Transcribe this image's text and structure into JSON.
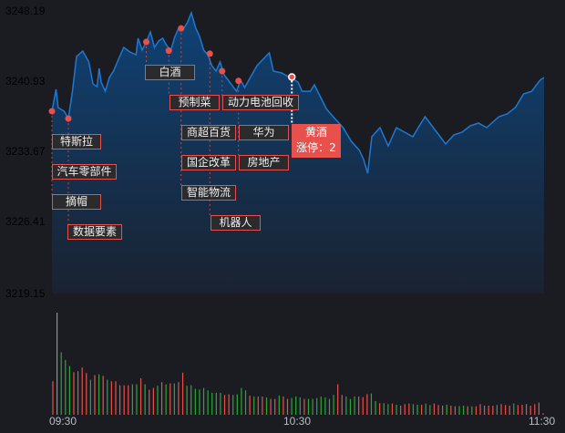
{
  "chart_data": {
    "type": "line",
    "y_axis_labels": [
      {
        "value": "3248.19",
        "color": "#e8504c"
      },
      {
        "value": "3240.93",
        "color": "#e8504c"
      },
      {
        "value": "3233.67",
        "color": "#b8bcc4"
      },
      {
        "value": "3226.41",
        "color": "#2fa53a"
      },
      {
        "value": "3219.15",
        "color": "#2fa53a"
      }
    ],
    "ylim": [
      3219.15,
      3248.19
    ],
    "x_axis_labels": [
      "09:30",
      "10:30",
      "11:30"
    ],
    "xlim_minutes_from_open": [
      0,
      120
    ],
    "colors": {
      "line": "#1e78d2",
      "area_top": "#0f3f6e",
      "area_bottom": "#1a2230",
      "up": "#e8504c",
      "down": "#2fa53a",
      "marker": "#e8504c"
    },
    "price_series": [
      [
        0,
        3237.88
      ],
      [
        1,
        3240.13
      ],
      [
        1.5,
        3238.26
      ],
      [
        3,
        3237.88
      ],
      [
        4,
        3237.13
      ],
      [
        5,
        3239.94
      ],
      [
        6,
        3243.51
      ],
      [
        7.5,
        3244.07
      ],
      [
        9,
        3242.94
      ],
      [
        10,
        3240.69
      ],
      [
        11,
        3240.41
      ],
      [
        11.5,
        3242.29
      ],
      [
        12,
        3240.88
      ],
      [
        13,
        3239.94
      ],
      [
        14,
        3241.35
      ],
      [
        15,
        3242.01
      ],
      [
        16.5,
        3243.51
      ],
      [
        17.5,
        3244.44
      ],
      [
        19,
        3243.97
      ],
      [
        20.5,
        3243.69
      ],
      [
        21,
        3245.38
      ],
      [
        22,
        3244.16
      ],
      [
        23,
        3245.0
      ],
      [
        24,
        3246.03
      ],
      [
        25,
        3244.44
      ],
      [
        26,
        3245.1
      ],
      [
        27,
        3245.38
      ],
      [
        28,
        3244.63
      ],
      [
        29,
        3244.16
      ],
      [
        30,
        3245.57
      ],
      [
        31,
        3246.5
      ],
      [
        32,
        3246.32
      ],
      [
        33,
        3246.97
      ],
      [
        34,
        3248.0
      ],
      [
        35,
        3246.5
      ],
      [
        36,
        3245.57
      ],
      [
        37,
        3244.16
      ],
      [
        38,
        3243.69
      ],
      [
        39,
        3242.57
      ],
      [
        40,
        3242.01
      ],
      [
        41,
        3242.94
      ],
      [
        42,
        3241.63
      ],
      [
        43,
        3241.07
      ],
      [
        45,
        3239.94
      ],
      [
        46,
        3241.07
      ],
      [
        47,
        3240.32
      ],
      [
        49,
        3241.82
      ],
      [
        50,
        3242.57
      ],
      [
        53,
        3243.88
      ],
      [
        54,
        3242.01
      ],
      [
        56,
        3241.82
      ],
      [
        58,
        3241.35
      ],
      [
        60,
        3240.88
      ],
      [
        61,
        3239.94
      ],
      [
        63,
        3239.94
      ],
      [
        64,
        3240.6
      ],
      [
        65,
        3239.76
      ],
      [
        67,
        3238.07
      ],
      [
        69,
        3237.13
      ],
      [
        71,
        3236.2
      ],
      [
        73,
        3234.79
      ],
      [
        75,
        3233.85
      ],
      [
        76,
        3232.92
      ],
      [
        77,
        3231.51
      ],
      [
        78,
        3235.26
      ],
      [
        80,
        3236.2
      ],
      [
        82,
        3234.32
      ],
      [
        84,
        3236.2
      ],
      [
        86,
        3235.73
      ],
      [
        88,
        3235.26
      ],
      [
        90,
        3236.67
      ],
      [
        91,
        3237.32
      ],
      [
        93,
        3236.2
      ],
      [
        96,
        3234.51
      ],
      [
        98,
        3235.45
      ],
      [
        100,
        3235.73
      ],
      [
        102,
        3236.38
      ],
      [
        104,
        3236.67
      ],
      [
        106,
        3236.2
      ],
      [
        109,
        3237.32
      ],
      [
        111,
        3237.6
      ],
      [
        113,
        3238.26
      ],
      [
        115,
        3239.66
      ],
      [
        117,
        3239.94
      ],
      [
        119,
        3241.07
      ],
      [
        120,
        3241.35
      ]
    ],
    "volume_relative": [
      110,
      335,
      205,
      180,
      160,
      140,
      143,
      155,
      137,
      115,
      130,
      133,
      128,
      115,
      110,
      110,
      97,
      97,
      97,
      100,
      100,
      120,
      100,
      82,
      88,
      95,
      107,
      100,
      103,
      103,
      107,
      138,
      95,
      97,
      85,
      83,
      88,
      80,
      72,
      72,
      72,
      65,
      67,
      65,
      67,
      88,
      80,
      63,
      60,
      60,
      60,
      57,
      52,
      52,
      63,
      60,
      52,
      55,
      60,
      57,
      52,
      52,
      52,
      55,
      60,
      57,
      52,
      65,
      100,
      65,
      60,
      52,
      60,
      60,
      58,
      68,
      70,
      45,
      38,
      38,
      35,
      37,
      33,
      30,
      35,
      37,
      35,
      33,
      33,
      37,
      32,
      37,
      32,
      30,
      33,
      30,
      28,
      28,
      30,
      28,
      28,
      28,
      35,
      30,
      30,
      30,
      32,
      35,
      32,
      30,
      37,
      32,
      33,
      35,
      30,
      35,
      40,
      5
    ],
    "volume_direction": "rrgggrrrrgrgrgrrrrrggrgrrgrgrgrrgggggggggrrggggrgrrgrrgrrgggrgggggggrrgggrrrggrggrgrrrggrggrrrgrrggrgrrrrrgrrrgrrrr",
    "events": [
      {
        "minute": 0,
        "price": 3237.88,
        "labels": [
          "特斯拉",
          "汽车零部件",
          "摘帽"
        ]
      },
      {
        "minute": 4,
        "price": 3237.13,
        "labels": [
          "数据要素"
        ]
      },
      {
        "minute": 23,
        "price": 3245.0,
        "labels": [
          "白酒"
        ]
      },
      {
        "minute": 28.5,
        "price": 3244.1,
        "labels": [
          "预制菜"
        ]
      },
      {
        "minute": 31.5,
        "price": 3246.4,
        "labels": [
          "商超百货",
          "国企改革",
          "智能物流"
        ]
      },
      {
        "minute": 38.5,
        "price": 3243.8,
        "labels": [
          "机器人"
        ]
      },
      {
        "minute": 41.5,
        "price": 3242.0,
        "labels": [
          "动力电池回收"
        ]
      },
      {
        "minute": 45.5,
        "price": 3241.0,
        "labels": [
          "华为",
          "房地产"
        ]
      }
    ],
    "highlight": {
      "minute": 58.5,
      "price": 3241.4,
      "name": "黄酒",
      "text": "涨停：2"
    }
  }
}
